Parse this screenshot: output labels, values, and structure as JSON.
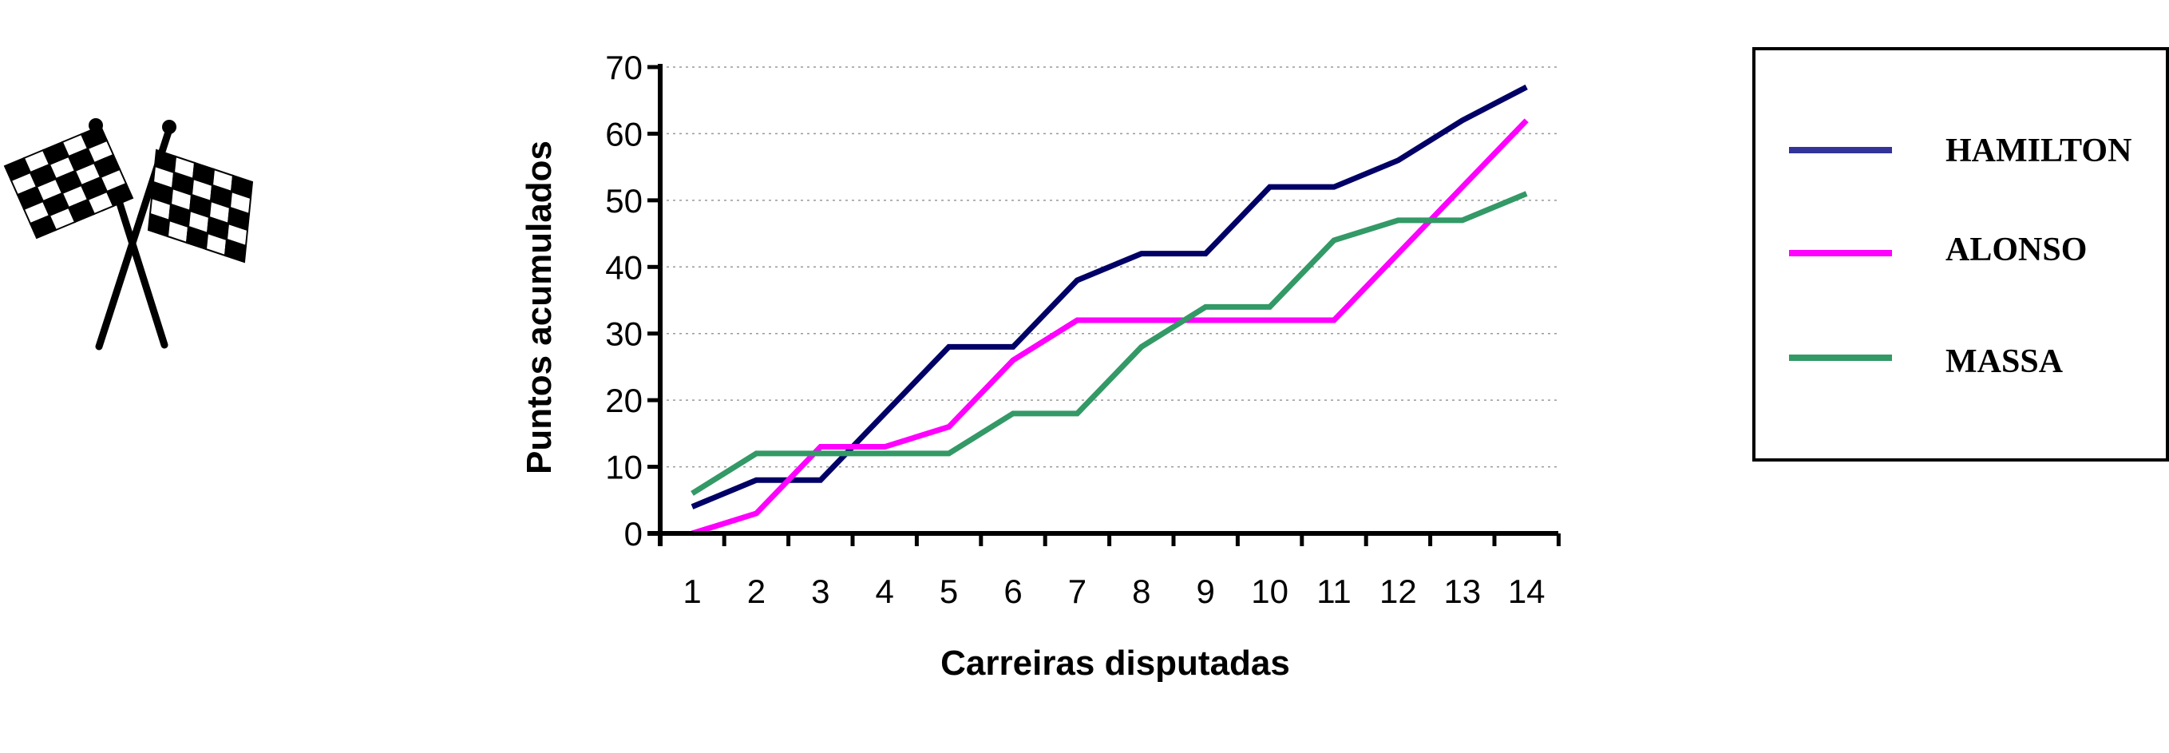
{
  "chart_data": {
    "type": "line",
    "title": "",
    "xlabel": "Carreiras disputadas",
    "ylabel": "Puntos acumulados",
    "categories": [
      "1",
      "2",
      "3",
      "4",
      "5",
      "6",
      "7",
      "8",
      "9",
      "10",
      "11",
      "12",
      "13",
      "14"
    ],
    "ylim": [
      0,
      70
    ],
    "yticks": [
      0,
      10,
      20,
      30,
      40,
      50,
      60,
      70
    ],
    "grid": "horizontal dotted",
    "legend_position": "right",
    "series": [
      {
        "name": "HAMILTON",
        "color": "#000066",
        "legend_color": "#333399",
        "values": [
          4,
          8,
          8,
          18,
          28,
          28,
          38,
          42,
          42,
          52,
          52,
          56,
          62,
          67
        ]
      },
      {
        "name": "ALONSO",
        "color": "#ff00ff",
        "legend_color": "#ff00ff",
        "values": [
          0,
          3,
          13,
          13,
          16,
          26,
          32,
          32,
          32,
          32,
          32,
          42,
          52,
          62
        ]
      },
      {
        "name": "MASSA",
        "color": "#339966",
        "legend_color": "#339966",
        "values": [
          6,
          12,
          12,
          12,
          12,
          18,
          18,
          28,
          34,
          34,
          44,
          47,
          47,
          51
        ]
      }
    ]
  },
  "decoration": {
    "icon": "checkered-flags-icon"
  }
}
